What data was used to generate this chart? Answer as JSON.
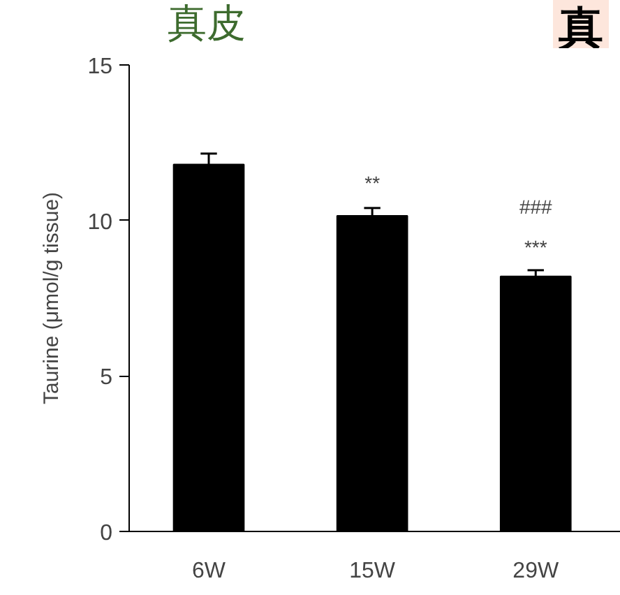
{
  "chart_data": {
    "type": "bar",
    "title": "真皮",
    "ylabel": "Taurine (μmol/g tissue)",
    "categories": [
      "6W",
      "15W",
      "29W"
    ],
    "values": [
      11.8,
      10.15,
      8.2
    ],
    "errors": [
      0.35,
      0.25,
      0.2
    ],
    "color": "#000000",
    "ylim": [
      0,
      15
    ],
    "yticks": [
      0,
      5,
      10,
      15
    ],
    "grid": false,
    "annotations": [
      "**",
      "###",
      "***",
      "真"
    ]
  }
}
